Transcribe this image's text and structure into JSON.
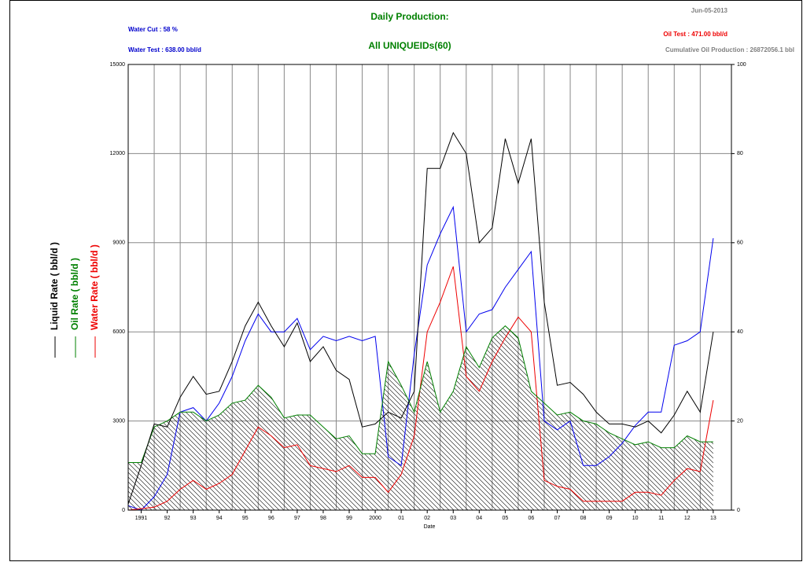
{
  "chart_data": {
    "type": "line",
    "title": "Daily Production:",
    "subtitle": "All UNIQUEIDs(60)",
    "annotations": [
      {
        "text": "Water Cut : 58 %",
        "color": "#0000cc"
      },
      {
        "text": "Water Test : 638.00 bbl/d",
        "color": "#0000cc"
      },
      {
        "text": "Jun-05-2013",
        "color": "#808080"
      },
      {
        "text": "Oil Test : 471.00 bbl/d",
        "color": "#ee0000"
      },
      {
        "text": "Cumulative Oil Production : 26872056.1 bbl",
        "color": "#808080"
      }
    ],
    "x_label": "Date",
    "x": [
      1991.0,
      1991.5,
      1992.0,
      1992.5,
      1993.0,
      1993.5,
      1994.0,
      1994.5,
      1995.0,
      1995.5,
      1996.0,
      1996.5,
      1997.0,
      1997.5,
      1998.0,
      1998.5,
      1999.0,
      1999.5,
      2000.0,
      2000.5,
      2001.0,
      2001.5,
      2002.0,
      2002.5,
      2003.0,
      2003.5,
      2004.0,
      2004.5,
      2005.0,
      2005.5,
      2006.0,
      2006.5,
      2007.0,
      2007.5,
      2008.0,
      2008.5,
      2009.0,
      2009.5,
      2010.0,
      2010.5,
      2011.0,
      2011.5,
      2012.0,
      2012.5,
      2013.0,
      2013.5
    ],
    "series": [
      {
        "name": "Liquid Rate ( bbl/d )",
        "color": "#000000",
        "values": [
          200,
          1500,
          2900,
          2800,
          3800,
          4500,
          3900,
          4000,
          5000,
          6200,
          7000,
          6200,
          5500,
          6300,
          5000,
          5500,
          4700,
          4400,
          2800,
          2900,
          3300,
          3100,
          4000,
          11500,
          11500,
          12700,
          12000,
          9000,
          9500,
          12500,
          11000,
          12500,
          7000,
          4200,
          4300,
          3900,
          3300,
          2900,
          2900,
          2800,
          3000,
          2600,
          3200,
          4000,
          3300,
          6000
        ]
      },
      {
        "name": "Oil Rate ( bbl/d )",
        "color": "#008000",
        "values": [
          1600,
          1600,
          2800,
          3000,
          3300,
          3300,
          3000,
          3200,
          3600,
          3700,
          4200,
          3800,
          3100,
          3200,
          3200,
          2800,
          2400,
          2500,
          1900,
          1900,
          5000,
          4200,
          3300,
          5000,
          3300,
          4000,
          5500,
          4800,
          5800,
          6200,
          5800,
          4000,
          3600,
          3200,
          3300,
          3000,
          2900,
          2600,
          2400,
          2200,
          2300,
          2100,
          2100,
          2500,
          2300,
          2300
        ],
        "hatched": true
      },
      {
        "name": "Water Rate ( bbl/d )",
        "color": "#ee0000",
        "values": [
          0,
          50,
          100,
          300,
          700,
          1000,
          700,
          900,
          1200,
          2000,
          2800,
          2500,
          2100,
          2200,
          1500,
          1400,
          1300,
          1500,
          1100,
          1100,
          600,
          1200,
          2500,
          6000,
          7000,
          8200,
          4500,
          4000,
          5000,
          5800,
          6500,
          6000,
          1000,
          800,
          700,
          300,
          300,
          300,
          300,
          600,
          600,
          500,
          1000,
          1400,
          1300,
          3700
        ]
      },
      {
        "color": "#0000ee",
        "axis": "y2",
        "values": [
          1,
          0,
          3,
          8,
          22,
          23,
          20,
          24,
          30,
          38,
          44,
          40,
          40,
          43,
          36,
          39,
          38,
          39,
          38,
          39,
          12,
          10,
          35,
          55,
          62,
          68,
          40,
          44,
          45,
          50,
          54,
          58,
          20,
          18,
          20,
          10,
          10,
          12,
          15,
          19,
          22,
          22,
          37,
          38,
          40,
          61
        ]
      }
    ],
    "xlim": [
      1991.0,
      2014.2
    ],
    "xticks": [
      {
        "value": 1991.5,
        "label": "1991"
      },
      {
        "value": 1992.5,
        "label": "92"
      },
      {
        "value": 1993.5,
        "label": "93"
      },
      {
        "value": 1994.5,
        "label": "94"
      },
      {
        "value": 1995.5,
        "label": "95"
      },
      {
        "value": 1996.5,
        "label": "96"
      },
      {
        "value": 1997.5,
        "label": "97"
      },
      {
        "value": 1998.5,
        "label": "98"
      },
      {
        "value": 1999.5,
        "label": "99"
      },
      {
        "value": 2000.5,
        "label": "2000"
      },
      {
        "value": 2001.5,
        "label": "01"
      },
      {
        "value": 2002.5,
        "label": "02"
      },
      {
        "value": 2003.5,
        "label": "03"
      },
      {
        "value": 2004.5,
        "label": "04"
      },
      {
        "value": 2005.5,
        "label": "05"
      },
      {
        "value": 2006.5,
        "label": "06"
      },
      {
        "value": 2007.5,
        "label": "07"
      },
      {
        "value": 2008.5,
        "label": "08"
      },
      {
        "value": 2009.5,
        "label": "09"
      },
      {
        "value": 2010.5,
        "label": "10"
      },
      {
        "value": 2011.5,
        "label": "11"
      },
      {
        "value": 2012.5,
        "label": "12"
      },
      {
        "value": 2013.5,
        "label": "13"
      }
    ],
    "ylim": [
      0,
      15000
    ],
    "yticks": [
      0,
      3000,
      6000,
      9000,
      12000,
      15000
    ],
    "y2lim": [
      0,
      100
    ],
    "y2ticks": [
      0,
      20,
      40,
      60,
      80,
      100
    ],
    "grid": true
  }
}
